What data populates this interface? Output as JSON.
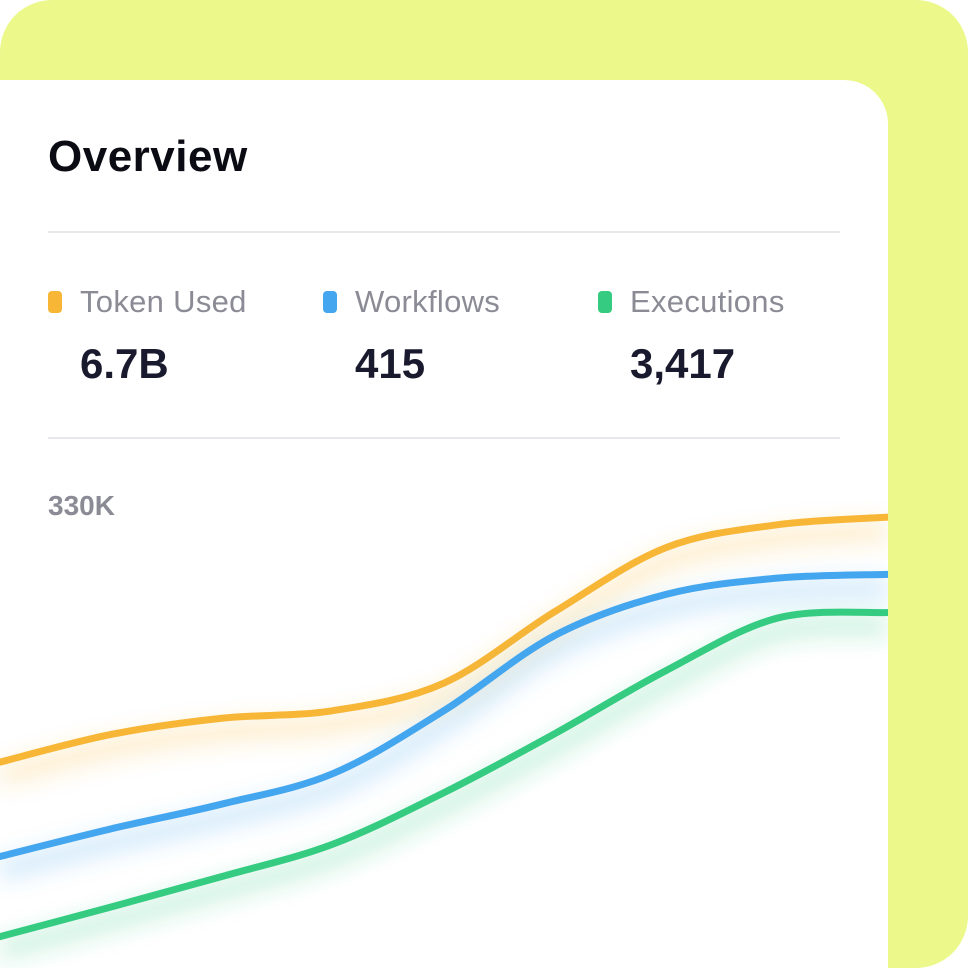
{
  "overview": {
    "title": "Overview"
  },
  "stats": [
    {
      "label": "Token Used",
      "value": "6.7B",
      "color": "#f7b636"
    },
    {
      "label": "Workflows",
      "value": "415",
      "color": "#43a6ef"
    },
    {
      "label": "Executions",
      "value": "3,417",
      "color": "#35cc82"
    }
  ],
  "colors": {
    "background_accent": "#ecf98a",
    "card": "#ffffff"
  },
  "chart_data": {
    "type": "line",
    "y_tick_label": "330K",
    "x": [
      0,
      1,
      2,
      3,
      4,
      5,
      6,
      7,
      8
    ],
    "series": [
      {
        "name": "Token Used",
        "color": "#f7b636",
        "values": [
          195,
          224,
          241,
          249,
          278,
          353,
          420,
          444,
          452
        ]
      },
      {
        "name": "Workflows",
        "color": "#43a6ef",
        "values": [
          96,
          125,
          151,
          183,
          249,
          328,
          371,
          388,
          392
        ]
      },
      {
        "name": "Executions",
        "color": "#35cc82",
        "values": [
          12,
          43,
          75,
          109,
          163,
          225,
          291,
          346,
          352
        ]
      }
    ],
    "ylim": [
      0,
      470
    ],
    "grid": false
  }
}
